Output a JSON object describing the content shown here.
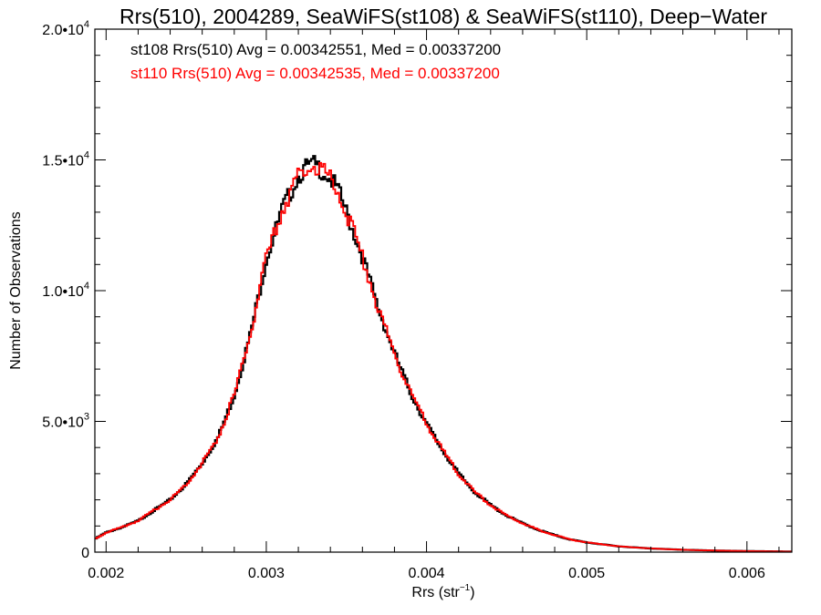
{
  "chart_data": {
    "type": "histogram-step",
    "title": "Rrs(510), 2004289, SeaWiFS(st108) & SeaWiFS(st110), Deep−Water",
    "xlabel": "Rrs (str",
    "xlabel_sup": "−1",
    "xlabel_suffix": ")",
    "ylabel": "Number of Observations",
    "xlim": [
      0.00193,
      0.00628
    ],
    "ylim": [
      0,
      20000
    ],
    "x_ticks": [
      {
        "value": 0.002,
        "label": "0.002"
      },
      {
        "value": 0.003,
        "label": "0.003"
      },
      {
        "value": 0.004,
        "label": "0.004"
      },
      {
        "value": 0.005,
        "label": "0.005"
      },
      {
        "value": 0.006,
        "label": "0.006"
      }
    ],
    "y_ticks": [
      {
        "value": 0,
        "mant": "0",
        "exp": ""
      },
      {
        "value": 5000,
        "mant": "5.0•10",
        "exp": "3"
      },
      {
        "value": 10000,
        "mant": "1.0•10",
        "exp": "4"
      },
      {
        "value": 15000,
        "mant": "1.5•10",
        "exp": "4"
      },
      {
        "value": 20000,
        "mant": "2.0•10",
        "exp": "4"
      }
    ],
    "annotations": [
      {
        "text": "st108 Rrs(510) Avg = 0.00342551, Med = 0.00337200",
        "color": "#000000"
      },
      {
        "text": "st110 Rrs(510) Avg = 0.00342535, Med = 0.00337200",
        "color": "#ff0000"
      }
    ],
    "series": [
      {
        "color": "#000000",
        "x": [
          0.00193,
          0.002,
          0.0021,
          0.0022,
          0.0023,
          0.0024,
          0.0025,
          0.0026,
          0.0027,
          0.0028,
          0.0029,
          0.003,
          0.0031,
          0.0032,
          0.00325,
          0.0033,
          0.00335,
          0.0034,
          0.00345,
          0.0035,
          0.0036,
          0.0037,
          0.0038,
          0.0039,
          0.004,
          0.0041,
          0.0042,
          0.0043,
          0.0044,
          0.0045,
          0.0046,
          0.0047,
          0.0048,
          0.0049,
          0.005,
          0.0052,
          0.0054,
          0.0056,
          0.0058,
          0.006,
          0.00628
        ],
        "y": [
          500,
          750,
          950,
          1200,
          1600,
          2000,
          2600,
          3400,
          4400,
          6000,
          8300,
          11200,
          13100,
          14400,
          14700,
          14800,
          14600,
          14300,
          13800,
          13000,
          11300,
          9300,
          7600,
          6100,
          4900,
          3900,
          3000,
          2300,
          1800,
          1400,
          1100,
          850,
          650,
          480,
          370,
          220,
          140,
          90,
          60,
          40,
          20
        ]
      },
      {
        "color": "#ff0000",
        "x": [
          0.00193,
          0.002,
          0.0021,
          0.0022,
          0.0023,
          0.0024,
          0.0025,
          0.0026,
          0.0027,
          0.0028,
          0.0029,
          0.003,
          0.0031,
          0.0032,
          0.00325,
          0.0033,
          0.00335,
          0.0034,
          0.00345,
          0.0035,
          0.0036,
          0.0037,
          0.0038,
          0.0039,
          0.004,
          0.0041,
          0.0042,
          0.0043,
          0.0044,
          0.0045,
          0.0046,
          0.0047,
          0.0048,
          0.0049,
          0.005,
          0.0052,
          0.0054,
          0.0056,
          0.0058,
          0.006,
          0.00628
        ],
        "y": [
          500,
          750,
          950,
          1200,
          1600,
          2000,
          2600,
          3400,
          4400,
          6000,
          8300,
          11200,
          13100,
          14400,
          14700,
          14800,
          14600,
          14300,
          13800,
          13000,
          11300,
          9300,
          7600,
          6100,
          4900,
          3900,
          3000,
          2300,
          1800,
          1400,
          1100,
          850,
          650,
          480,
          370,
          220,
          140,
          90,
          60,
          40,
          20
        ]
      }
    ],
    "grid": false,
    "legend": "top-left annotations"
  }
}
